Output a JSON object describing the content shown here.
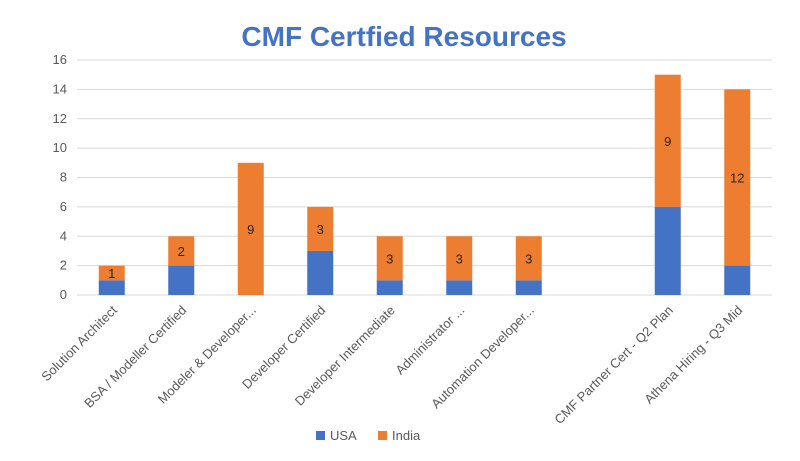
{
  "chart_data": {
    "type": "bar",
    "stacked": true,
    "title": "CMF Certfied Resources",
    "xlabel": "",
    "ylabel": "",
    "ylim": [
      0,
      16
    ],
    "yticks": [
      0,
      2,
      4,
      6,
      8,
      10,
      12,
      14,
      16
    ],
    "grid": true,
    "legend_position": "bottom",
    "categories": [
      "Solution Architect",
      "BSA / Modeller Certified",
      "Modeler & Developer...",
      "Developer Certified",
      "Developer Intermediate",
      "Administrator ...",
      "Automation Developer...",
      "",
      "CMF Partner Cert - Q2 Plan",
      "Athena Hiring - Q3 Mid"
    ],
    "series": [
      {
        "name": "USA",
        "color": "#4472C4",
        "values": [
          1,
          2,
          0,
          3,
          1,
          1,
          1,
          0,
          6,
          2
        ],
        "labels": [
          null,
          null,
          null,
          null,
          null,
          null,
          null,
          null,
          null,
          null
        ]
      },
      {
        "name": "India",
        "color": "#ED7D31",
        "values": [
          1,
          2,
          9,
          3,
          3,
          3,
          3,
          0,
          9,
          12
        ],
        "labels": [
          "1",
          "2",
          "9",
          "3",
          "3",
          "3",
          "3",
          null,
          "9",
          "12"
        ]
      }
    ]
  }
}
